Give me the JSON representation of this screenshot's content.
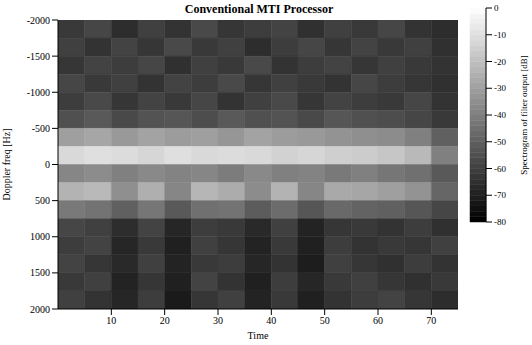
{
  "chart_data": {
    "type": "heatmap",
    "title": "Conventional MTI Processor",
    "x_label": "Time",
    "y_label": "Doppler freq [Hz]",
    "xlim": [
      0,
      75
    ],
    "xticks": [
      10,
      20,
      30,
      40,
      50,
      60,
      70
    ],
    "ylim": [
      2000,
      -2000
    ],
    "yticks": [
      -2000,
      -1500,
      -1000,
      -500,
      0,
      500,
      1000,
      1500,
      2000
    ],
    "grid": false,
    "x_edges": [
      0,
      5,
      10,
      15,
      20,
      25,
      30,
      35,
      40,
      45,
      50,
      55,
      60,
      65,
      70,
      75
    ],
    "y_edges": [
      -2000,
      -1750,
      -1500,
      -1250,
      -1000,
      -750,
      -500,
      -250,
      0,
      250,
      500,
      750,
      1000,
      1250,
      1500,
      1750,
      2000
    ],
    "cells": [
      [
        -62,
        -58,
        -66,
        -60,
        -64,
        -57,
        -63,
        -61,
        -59,
        -65,
        -60,
        -62,
        -58,
        -64,
        -66
      ],
      [
        -60,
        -64,
        -59,
        -63,
        -57,
        -62,
        -60,
        -66,
        -61,
        -58,
        -63,
        -59,
        -62,
        -60,
        -65
      ],
      [
        -63,
        -59,
        -61,
        -58,
        -65,
        -60,
        -62,
        -57,
        -64,
        -61,
        -59,
        -63,
        -60,
        -62,
        -64
      ],
      [
        -58,
        -62,
        -60,
        -64,
        -59,
        -61,
        -57,
        -63,
        -60,
        -62,
        -64,
        -58,
        -61,
        -63,
        -65
      ],
      [
        -61,
        -57,
        -63,
        -59,
        -62,
        -58,
        -64,
        -60,
        -57,
        -63,
        -59,
        -61,
        -62,
        -58,
        -64
      ],
      [
        -55,
        -52,
        -57,
        -54,
        -53,
        -56,
        -52,
        -55,
        -54,
        -57,
        -53,
        -55,
        -56,
        -58,
        -62
      ],
      [
        -30,
        -28,
        -32,
        -29,
        -31,
        -30,
        -33,
        -29,
        -31,
        -32,
        -34,
        -35,
        -36,
        -40,
        -50
      ],
      [
        -12,
        -10,
        -11,
        -13,
        -10,
        -12,
        -11,
        -12,
        -14,
        -13,
        -15,
        -16,
        -18,
        -22,
        -40
      ],
      [
        -38,
        -36,
        -40,
        -37,
        -39,
        -38,
        -41,
        -37,
        -40,
        -39,
        -42,
        -40,
        -43,
        -45,
        -52
      ],
      [
        -24,
        -22,
        -35,
        -25,
        -38,
        -23,
        -26,
        -36,
        -24,
        -38,
        -27,
        -28,
        -30,
        -34,
        -48
      ],
      [
        -42,
        -44,
        -50,
        -43,
        -52,
        -45,
        -44,
        -51,
        -46,
        -53,
        -47,
        -49,
        -50,
        -53,
        -58
      ],
      [
        -58,
        -60,
        -66,
        -59,
        -68,
        -61,
        -62,
        -67,
        -60,
        -69,
        -63,
        -62,
        -64,
        -61,
        -65
      ],
      [
        -61,
        -59,
        -68,
        -62,
        -70,
        -60,
        -63,
        -69,
        -62,
        -70,
        -61,
        -64,
        -62,
        -63,
        -60
      ],
      [
        -59,
        -63,
        -67,
        -60,
        -69,
        -62,
        -61,
        -68,
        -64,
        -71,
        -60,
        -63,
        -65,
        -61,
        -64
      ],
      [
        -62,
        -60,
        -69,
        -63,
        -70,
        -59,
        -64,
        -70,
        -61,
        -68,
        -62,
        -60,
        -63,
        -65,
        -62
      ],
      [
        -60,
        -64,
        -68,
        -61,
        -72,
        -63,
        -60,
        -69,
        -62,
        -70,
        -64,
        -61,
        -59,
        -63,
        -66
      ]
    ],
    "colorbar_range": [
      -80,
      0
    ],
    "colorbar_ticks": [
      0,
      -10,
      -20,
      -30,
      -40,
      -50,
      -60,
      -70,
      -80
    ],
    "colorbar_label": "Spectrogram of filter output [dB]"
  }
}
